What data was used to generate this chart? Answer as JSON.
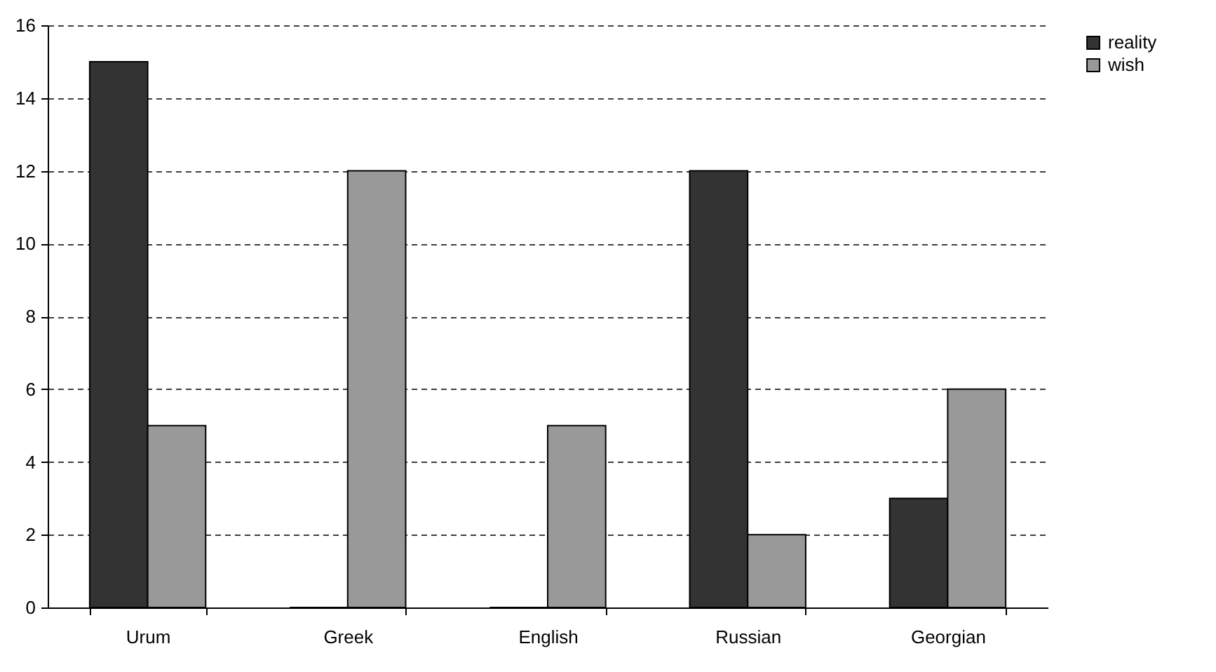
{
  "chart_data": {
    "type": "bar",
    "categories": [
      "Urum",
      "Greek",
      "English",
      "Russian",
      "Georgian"
    ],
    "series": [
      {
        "name": "reality",
        "color": "#333333",
        "values": [
          15,
          0,
          0,
          12,
          3
        ]
      },
      {
        "name": "wish",
        "color": "#999999",
        "values": [
          5,
          12,
          5,
          2,
          6
        ]
      }
    ],
    "ylim": [
      0,
      16
    ],
    "yticks": [
      0,
      2,
      4,
      6,
      8,
      10,
      12,
      14,
      16
    ],
    "grid": "y",
    "legend": "right"
  }
}
